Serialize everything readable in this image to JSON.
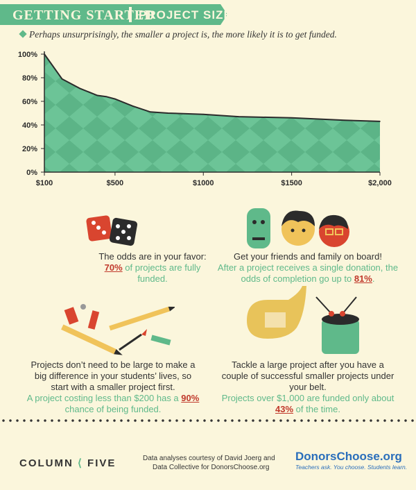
{
  "header": {
    "title": "GETTING STARTED",
    "section": "PROJECT SIZE",
    "subtitle": "Perhaps unsurprisingly, the smaller a project is, the more likely it is to get funded."
  },
  "colors": {
    "accent": "#5fb98a",
    "highlight": "#c0392b",
    "background": "#fbf6dc"
  },
  "chart_data": {
    "type": "area",
    "title": "",
    "xlabel": "",
    "ylabel": "",
    "x": [
      100,
      200,
      300,
      400,
      450,
      500,
      600,
      700,
      800,
      1000,
      1200,
      1500,
      1800,
      2000
    ],
    "series": [
      {
        "values": [
          100,
          79,
          71,
          65,
          64,
          62,
          56,
          51,
          50,
          49,
          47,
          46,
          44,
          43
        ]
      }
    ],
    "xlim": [
      100,
      2000
    ],
    "ylim": [
      0,
      100
    ],
    "x_ticks": [
      100,
      500,
      1000,
      1500,
      2000
    ],
    "x_tick_labels": [
      "$100",
      "$500",
      "$1000",
      "$1500",
      "$2,000"
    ],
    "y_ticks": [
      0,
      20,
      40,
      60,
      80,
      100
    ],
    "y_tick_labels": [
      "0%",
      "20%",
      "40%",
      "60%",
      "80%",
      "100%"
    ],
    "grid": false,
    "legend": "none"
  },
  "facts": {
    "dice": {
      "main": "The odds are in your favor:",
      "pct": "70%",
      "rest": " of projects are fully funded."
    },
    "friends": {
      "main": "Get your friends and family on board!",
      "note": "After a project receives a single donation, the odds of completion go up to ",
      "pct": "81%",
      "end": "."
    },
    "small": {
      "main": "Projects don’t need to be large to make a big difference in your students’ lives, so start with a smaller project first.",
      "note": "A project costing less than $200 has a ",
      "pct": "90%",
      "rest": " chance of being funded."
    },
    "large": {
      "main": "Tackle a large project after you have a couple of successful smaller projects under your belt.",
      "note": "Projects over $1,000 are funded only about ",
      "pct": "43%",
      "rest": " of the time."
    }
  },
  "footer": {
    "logo_left": "COLUMN",
    "logo_right": "FIVE",
    "credit_line1": "Data analyses courtesy of David Joerg and",
    "credit_line2": "Data Collective for DonorsChoose.org",
    "partner": "DonorsChoose.org",
    "partner_tagline": "Teachers ask. You choose. Students learn."
  },
  "icons": [
    "dice-icon",
    "faces-icon",
    "school-supplies-icon",
    "band-instruments-icon"
  ]
}
